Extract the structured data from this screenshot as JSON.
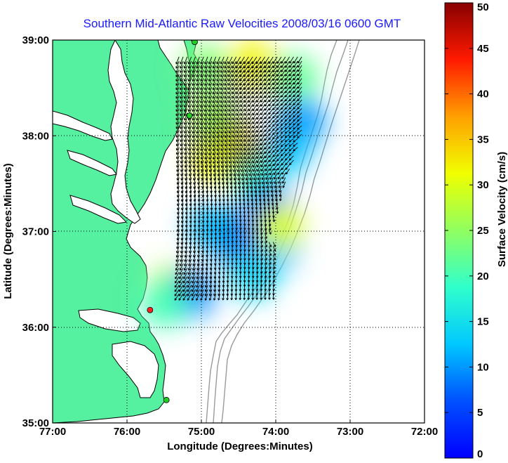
{
  "figure": {
    "title": "Southern Mid-Atlantic Raw Velocities 2008/03/16 0600 GMT",
    "xlabel": "Longitude (Degrees:Minutes)",
    "ylabel": "Latitude (Degrees:Minutes)",
    "colorbar_label": "Surface Velocity (cm/s)"
  },
  "axes": {
    "x_ticks": [
      {
        "value": -77,
        "label": "77:00"
      },
      {
        "value": -76,
        "label": "76:00"
      },
      {
        "value": -75,
        "label": "75:00"
      },
      {
        "value": -74,
        "label": "74:00"
      },
      {
        "value": -73,
        "label": "73:00"
      },
      {
        "value": -72,
        "label": "72:00"
      }
    ],
    "y_ticks": [
      {
        "value": 35,
        "label": "35:00"
      },
      {
        "value": 36,
        "label": "36:00"
      },
      {
        "value": 37,
        "label": "37:00"
      },
      {
        "value": 38,
        "label": "38:00"
      },
      {
        "value": 39,
        "label": "39:00"
      }
    ],
    "xlim": [
      -77,
      -72
    ],
    "ylim": [
      35,
      39
    ],
    "grid": "dotted"
  },
  "colorbar": {
    "range": [
      0,
      50
    ],
    "ticks": [
      {
        "value": 0,
        "label": "0"
      },
      {
        "value": 5,
        "label": "5"
      },
      {
        "value": 10,
        "label": "10"
      },
      {
        "value": 15,
        "label": "15"
      },
      {
        "value": 20,
        "label": "20"
      },
      {
        "value": 25,
        "label": "25"
      },
      {
        "value": 30,
        "label": "30"
      },
      {
        "value": 35,
        "label": "35"
      },
      {
        "value": 40,
        "label": "40"
      },
      {
        "value": 45,
        "label": "45"
      },
      {
        "value": 50,
        "label": "50"
      }
    ],
    "colormap": "jet"
  },
  "colors": {
    "land": "#55f0a0",
    "water": "#ffffff",
    "coast": "#000000",
    "bathymetry": "#9a9a9a",
    "arrow": "#000000",
    "title": "#1a1aff"
  },
  "stations": [
    {
      "lon": -75.09,
      "lat": 38.98,
      "color": "#22cc22"
    },
    {
      "lon": -75.16,
      "lat": 38.21,
      "color": "#22cc22"
    },
    {
      "lon": -75.69,
      "lat": 36.18,
      "color": "#ff2222"
    },
    {
      "lon": -75.47,
      "lat": 35.24,
      "color": "#22cc22"
    }
  ],
  "chart_data": {
    "type": "heatmap",
    "description_units": "cm/s",
    "speed_regions": [
      {
        "lon": -74.55,
        "lat": 37.85,
        "speed": 34
      },
      {
        "lon": -74.8,
        "lat": 37.75,
        "speed": 31
      },
      {
        "lon": -74.85,
        "lat": 38.2,
        "speed": 26
      },
      {
        "lon": -74.3,
        "lat": 38.75,
        "speed": 32
      },
      {
        "lon": -74.95,
        "lat": 38.7,
        "speed": 24
      },
      {
        "lon": -73.75,
        "lat": 38.6,
        "speed": 22
      },
      {
        "lon": -73.65,
        "lat": 38.15,
        "speed": 10
      },
      {
        "lon": -73.85,
        "lat": 37.85,
        "speed": 12
      },
      {
        "lon": -74.25,
        "lat": 37.55,
        "speed": 18
      },
      {
        "lon": -74.1,
        "lat": 37.25,
        "speed": 8
      },
      {
        "lon": -74.6,
        "lat": 36.95,
        "speed": 7
      },
      {
        "lon": -74.85,
        "lat": 37.05,
        "speed": 12
      },
      {
        "lon": -74.0,
        "lat": 36.85,
        "speed": 12
      },
      {
        "lon": -73.95,
        "lat": 37.05,
        "speed": 30
      },
      {
        "lon": -74.3,
        "lat": 36.55,
        "speed": 14
      },
      {
        "lon": -75.4,
        "lat": 36.4,
        "speed": 28
      },
      {
        "lon": -75.15,
        "lat": 36.35,
        "speed": 9
      },
      {
        "lon": -75.5,
        "lat": 36.25,
        "speed": 20
      }
    ],
    "current_field": [
      {
        "lon": -74.9,
        "lat": 38.7,
        "dir_deg": 200,
        "speed": 25
      },
      {
        "lon": -74.3,
        "lat": 38.7,
        "dir_deg": 215,
        "speed": 30
      },
      {
        "lon": -74.8,
        "lat": 38.0,
        "dir_deg": 200,
        "speed": 30
      },
      {
        "lon": -74.3,
        "lat": 37.9,
        "dir_deg": 210,
        "speed": 32
      },
      {
        "lon": -73.8,
        "lat": 38.0,
        "dir_deg": 240,
        "speed": 12
      },
      {
        "lon": -74.8,
        "lat": 37.3,
        "dir_deg": 180,
        "speed": 20
      },
      {
        "lon": -74.5,
        "lat": 37.0,
        "dir_deg": 175,
        "speed": 8
      },
      {
        "lon": -74.0,
        "lat": 36.9,
        "dir_deg": 150,
        "speed": 12
      },
      {
        "lon": -75.3,
        "lat": 36.4,
        "dir_deg": 215,
        "speed": 26
      }
    ]
  }
}
